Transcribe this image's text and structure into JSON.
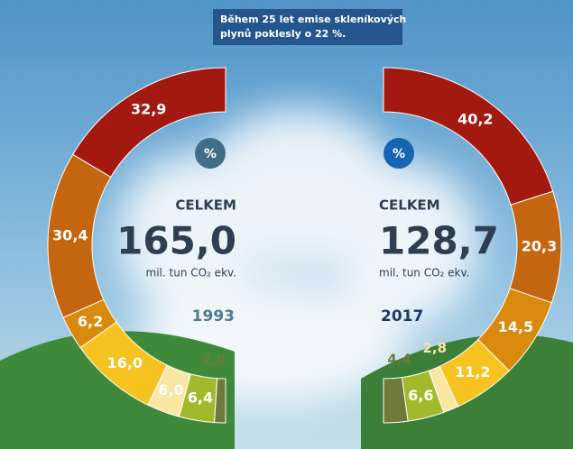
{
  "header": {
    "title_lines": [
      "Během 25 let emise skleníkových",
      "plynů poklesly o 22 %."
    ]
  },
  "chart_data": [
    {
      "type": "pie",
      "side": "left",
      "year": "1993",
      "percent_sign": "%",
      "total_caption": "CELKEM",
      "total": {
        "value": 165.0,
        "label": "165,0"
      },
      "unit": "mil. tun CO₂ ekv.",
      "values": [
        32.9,
        30.4,
        6.2,
        16.0,
        6.0,
        6.4,
        2.0
      ],
      "value_labels": [
        "32,9",
        "30,4",
        "6,2",
        "16,0",
        "6,0",
        "6,4",
        "2,0"
      ],
      "colors": [
        "#a3190f",
        "#c4650f",
        "#d98a0c",
        "#f6c321",
        "#fbe7a4",
        "#a3b92c",
        "#6f7a38"
      ]
    },
    {
      "type": "pie",
      "side": "right",
      "year": "2017",
      "percent_sign": "%",
      "total_caption": "CELKEM",
      "total": {
        "value": 128.7,
        "label": "128,7"
      },
      "unit": "mil. tun CO₂ ekv.",
      "values": [
        40.2,
        20.3,
        14.5,
        11.2,
        2.8,
        6.6,
        4.4
      ],
      "value_labels": [
        "40,2",
        "20,3",
        "14,5",
        "11,2",
        "2,8",
        "6,6",
        "4,4"
      ],
      "colors": [
        "#a3190f",
        "#c4650f",
        "#d98a0c",
        "#f6c321",
        "#fbe7a4",
        "#a3b92c",
        "#6f7a38"
      ]
    }
  ]
}
